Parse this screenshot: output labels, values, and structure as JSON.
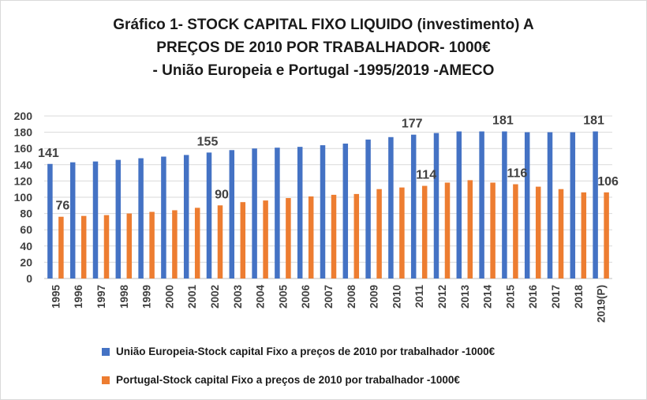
{
  "chart_data": {
    "type": "bar",
    "title_lines": [
      "Gráfico 1- STOCK CAPITAL FIXO LIQUIDO (investimento) A",
      "PREÇOS DE 2010 POR TRABALHADOR- 1000€",
      "- União Europeia e Portugal -1995/2019 -AMECO"
    ],
    "categories": [
      "1995",
      "1996",
      "1997",
      "1998",
      "1999",
      "2000",
      "2001",
      "2002",
      "2003",
      "2004",
      "2005",
      "2006",
      "2007",
      "2008",
      "2009",
      "2010",
      "2011",
      "2012",
      "2013",
      "2014",
      "2015",
      "2016",
      "2017",
      "2018",
      "2019(P)"
    ],
    "series": [
      {
        "name": "União Europeia-Stock capital Fixo a preços de 2010 por trabalhador -1000€",
        "color": "#4472c4",
        "values": [
          141,
          143,
          144,
          146,
          148,
          150,
          152,
          155,
          158,
          160,
          161,
          162,
          164,
          166,
          171,
          174,
          177,
          179,
          181,
          181,
          181,
          180,
          180,
          180,
          181
        ]
      },
      {
        "name": "Portugal-Stock capital Fixo a preços de 2010 por trabalhador -1000€",
        "color": "#ed7d31",
        "values": [
          76,
          77,
          78,
          80,
          82,
          84,
          87,
          90,
          94,
          96,
          99,
          101,
          103,
          104,
          110,
          112,
          114,
          118,
          121,
          118,
          116,
          113,
          110,
          106,
          106
        ]
      }
    ],
    "data_labels": [
      {
        "series": 0,
        "index": 0,
        "text": "141"
      },
      {
        "series": 1,
        "index": 0,
        "text": "76"
      },
      {
        "series": 0,
        "index": 7,
        "text": "155"
      },
      {
        "series": 1,
        "index": 7,
        "text": "90"
      },
      {
        "series": 0,
        "index": 16,
        "text": "177"
      },
      {
        "series": 1,
        "index": 16,
        "text": "114"
      },
      {
        "series": 0,
        "index": 20,
        "text": "181"
      },
      {
        "series": 1,
        "index": 20,
        "text": "116"
      },
      {
        "series": 0,
        "index": 24,
        "text": "181"
      },
      {
        "series": 1,
        "index": 24,
        "text": "106"
      }
    ],
    "ylim": [
      0,
      200
    ],
    "yticks": [
      "0",
      "20",
      "40",
      "60",
      "80",
      "100",
      "120",
      "140",
      "160",
      "180",
      "200"
    ],
    "grid": true,
    "legend_position": "bottom",
    "xlabel": "",
    "ylabel": ""
  }
}
